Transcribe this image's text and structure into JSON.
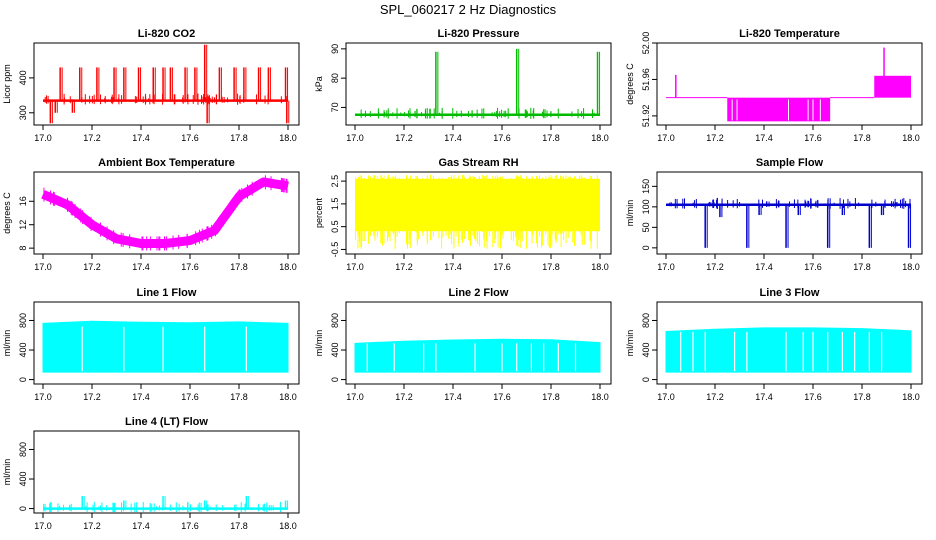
{
  "page": {
    "title": "SPL_060217  2 Hz Diagnostics"
  },
  "chart_data": [
    {
      "type": "line",
      "title": "Li-820 CO2",
      "ylabel": "Licor ppm",
      "color": "#ff0000",
      "xlim": [
        17.0,
        18.0
      ],
      "ylim": [
        265,
        500
      ],
      "xticks": [
        "17.0",
        "17.2",
        "17.4",
        "17.6",
        "17.8",
        "18.0"
      ],
      "yticks": [
        "300",
        "400"
      ],
      "series": [
        {
          "baseline": 335,
          "spikes": [
            {
              "x": 17.03,
              "y": 270
            },
            {
              "x": 17.05,
              "y": 300
            },
            {
              "x": 17.07,
              "y": 430
            },
            {
              "x": 17.12,
              "y": 300
            },
            {
              "x": 17.15,
              "y": 430
            },
            {
              "x": 17.22,
              "y": 430
            },
            {
              "x": 17.29,
              "y": 430
            },
            {
              "x": 17.33,
              "y": 430
            },
            {
              "x": 17.39,
              "y": 430
            },
            {
              "x": 17.45,
              "y": 430
            },
            {
              "x": 17.49,
              "y": 430
            },
            {
              "x": 17.52,
              "y": 430
            },
            {
              "x": 17.58,
              "y": 430
            },
            {
              "x": 17.62,
              "y": 430
            },
            {
              "x": 17.66,
              "y": 495
            },
            {
              "x": 17.67,
              "y": 270
            },
            {
              "x": 17.72,
              "y": 430
            },
            {
              "x": 17.78,
              "y": 430
            },
            {
              "x": 17.82,
              "y": 430
            },
            {
              "x": 17.88,
              "y": 430
            },
            {
              "x": 17.92,
              "y": 430
            },
            {
              "x": 17.99,
              "y": 430
            },
            {
              "x": 17.995,
              "y": 270
            }
          ]
        }
      ]
    },
    {
      "type": "line",
      "title": "Li-820 Pressure",
      "ylabel": "kPa",
      "color": "#00bb00",
      "xlim": [
        17.0,
        18.0
      ],
      "ylim": [
        64,
        92
      ],
      "xticks": [
        "17.0",
        "17.2",
        "17.4",
        "17.6",
        "17.8",
        "18.0"
      ],
      "yticks": [
        "70",
        "80",
        "90"
      ],
      "series": [
        {
          "baseline": 67.5,
          "spikes": [
            {
              "x": 17.33,
              "y": 89
            },
            {
              "x": 17.66,
              "y": 90
            },
            {
              "x": 17.99,
              "y": 89
            }
          ]
        }
      ]
    },
    {
      "type": "line",
      "title": "Li-820 Temperature",
      "ylabel": "degrees C",
      "color": "#ff00ff",
      "xlim": [
        17.0,
        18.0
      ],
      "ylim": [
        51.91,
        52.0
      ],
      "xticks": [
        "17.0",
        "17.2",
        "17.4",
        "17.6",
        "17.8",
        "18.0"
      ],
      "yticks": [
        "51.92",
        "51.96",
        "52.00"
      ],
      "series": [
        {
          "segments": [
            {
              "x0": 17.0,
              "x1": 17.25,
              "y": 51.94
            },
            {
              "x0": 17.25,
              "x1": 17.67,
              "y0": 51.914,
              "y1": 51.94
            },
            {
              "x0": 17.67,
              "x1": 17.85,
              "y": 51.94
            },
            {
              "x0": 17.85,
              "x1": 18.0,
              "y0": 51.94,
              "y1": 51.964
            }
          ],
          "spikes": [
            {
              "x": 17.04,
              "y": 51.965
            },
            {
              "x": 17.89,
              "y": 51.995
            }
          ]
        }
      ]
    },
    {
      "type": "line",
      "title": "Ambient Box Temperature",
      "ylabel": "degrees C",
      "color": "#ff00ff",
      "xlim": [
        17.0,
        18.0
      ],
      "ylim": [
        7,
        21
      ],
      "xticks": [
        "17.0",
        "17.2",
        "17.4",
        "17.6",
        "17.8",
        "18.0"
      ],
      "yticks": [
        "8",
        "12",
        "16"
      ],
      "series": [
        {
          "x": [
            17.0,
            17.1,
            17.2,
            17.3,
            17.4,
            17.5,
            17.6,
            17.7,
            17.8,
            17.9,
            18.0
          ],
          "values": [
            17.2,
            15.4,
            12.0,
            9.6,
            8.8,
            8.8,
            9.3,
            11.0,
            16.8,
            19.3,
            18.6
          ]
        }
      ]
    },
    {
      "type": "line",
      "title": "Gas Stream RH",
      "ylabel": "percent",
      "color": "#ffff00",
      "xlim": [
        17.0,
        18.0
      ],
      "ylim": [
        -0.7,
        2.9
      ],
      "xticks": [
        "17.0",
        "17.2",
        "17.4",
        "17.6",
        "17.8",
        "18.0"
      ],
      "yticks": [
        "-0.5",
        "0.5",
        "1.5",
        "2.5"
      ],
      "series": [
        {
          "upper": 2.6,
          "lower": 0.3,
          "floor": -0.5
        }
      ]
    },
    {
      "type": "line",
      "title": "Sample Flow",
      "ylabel": "ml/min",
      "color": "#0000cc",
      "xlim": [
        17.0,
        18.0
      ],
      "ylim": [
        -15,
        185
      ],
      "xticks": [
        "17.0",
        "17.2",
        "17.4",
        "17.6",
        "17.8",
        "18.0"
      ],
      "yticks": [
        "0",
        "50",
        "100",
        "150"
      ],
      "series": [
        {
          "baseline": 105,
          "spikes": [
            {
              "x": 17.16,
              "y": 0
            },
            {
              "x": 17.22,
              "y": 75
            },
            {
              "x": 17.33,
              "y": 0
            },
            {
              "x": 17.38,
              "y": 80
            },
            {
              "x": 17.49,
              "y": 0
            },
            {
              "x": 17.54,
              "y": 80
            },
            {
              "x": 17.66,
              "y": 0
            },
            {
              "x": 17.72,
              "y": 80
            },
            {
              "x": 17.83,
              "y": 0
            },
            {
              "x": 17.88,
              "y": 80
            },
            {
              "x": 17.99,
              "y": 0
            }
          ]
        }
      ]
    },
    {
      "type": "area",
      "title": "Line 1 Flow",
      "ylabel": "ml/min",
      "color": "#00ffff",
      "xlim": [
        17.0,
        18.0
      ],
      "ylim": [
        -60,
        1050
      ],
      "xticks": [
        "17.0",
        "17.2",
        "17.4",
        "17.6",
        "17.8",
        "18.0"
      ],
      "yticks": [
        "0",
        "400",
        "800"
      ],
      "series": [
        {
          "lower": 100,
          "upper": [
            760,
            790,
            775,
            770,
            780,
            760
          ],
          "gaps": [
            17.16,
            17.33,
            17.49,
            17.66,
            17.83
          ]
        }
      ]
    },
    {
      "type": "area",
      "title": "Line 2 Flow",
      "ylabel": "ml/min",
      "color": "#00ffff",
      "xlim": [
        17.0,
        18.0
      ],
      "ylim": [
        -60,
        1050
      ],
      "xticks": [
        "17.0",
        "17.2",
        "17.4",
        "17.6",
        "17.8",
        "18.0"
      ],
      "yticks": [
        "0",
        "400",
        "800"
      ],
      "series": [
        {
          "lower": 100,
          "upper": [
            490,
            520,
            535,
            545,
            540,
            500
          ],
          "gaps": [
            17.05,
            17.16,
            17.28,
            17.33,
            17.49,
            17.6,
            17.66,
            17.72,
            17.77,
            17.83,
            17.9
          ]
        }
      ]
    },
    {
      "type": "area",
      "title": "Line 3 Flow",
      "ylabel": "ml/min",
      "color": "#00ffff",
      "xlim": [
        17.0,
        18.0
      ],
      "ylim": [
        -60,
        1050
      ],
      "xticks": [
        "17.0",
        "17.2",
        "17.4",
        "17.6",
        "17.8",
        "18.0"
      ],
      "yticks": [
        "0",
        "400",
        "800"
      ],
      "series": [
        {
          "lower": 100,
          "upper": [
            650,
            680,
            700,
            700,
            690,
            660
          ],
          "gaps": [
            17.06,
            17.11,
            17.16,
            17.28,
            17.33,
            17.49,
            17.56,
            17.6,
            17.66,
            17.72,
            17.77,
            17.83,
            17.88
          ]
        }
      ]
    },
    {
      "type": "line",
      "title": "Line 4 (LT) Flow",
      "ylabel": "ml/min",
      "color": "#00ffff",
      "xlim": [
        17.0,
        18.0
      ],
      "ylim": [
        -60,
        1050
      ],
      "xticks": [
        "17.0",
        "17.2",
        "17.4",
        "17.6",
        "17.8",
        "18.0"
      ],
      "yticks": [
        "0",
        "400",
        "800"
      ],
      "series": [
        {
          "baseline": 0,
          "spikes": [
            {
              "x": 17.16,
              "y": 170
            },
            {
              "x": 17.33,
              "y": 110
            },
            {
              "x": 17.49,
              "y": 170
            },
            {
              "x": 17.66,
              "y": 110
            },
            {
              "x": 17.83,
              "y": 170
            },
            {
              "x": 17.99,
              "y": 110
            }
          ]
        }
      ]
    }
  ]
}
